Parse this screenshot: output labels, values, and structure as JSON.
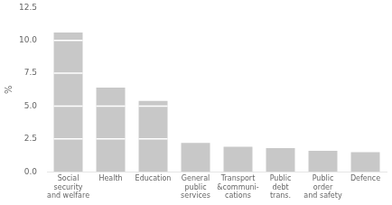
{
  "chart_data": {
    "type": "bar",
    "categories": [
      "Social\nsecurity\nand welfare",
      "Health",
      "Education",
      "General\npublic\nservices",
      "Transport\n&communi-\ncations",
      "Public\ndebt\ntrans.",
      "Public\norder\nand safety",
      "Defence"
    ],
    "values": [
      10.6,
      6.4,
      5.4,
      2.2,
      1.9,
      1.8,
      1.6,
      1.5
    ],
    "color": "#c8c8c8",
    "ylabel": "%",
    "ylim": [
      0,
      12.5
    ],
    "yticks": [
      {
        "value": 0.0,
        "label": "0.0"
      },
      2.5,
      {
        "value": 5.0,
        "label": "5.0"
      },
      7.5,
      {
        "value": 10.0,
        "label": "10.0"
      },
      12.5
    ],
    "grid": false
  }
}
